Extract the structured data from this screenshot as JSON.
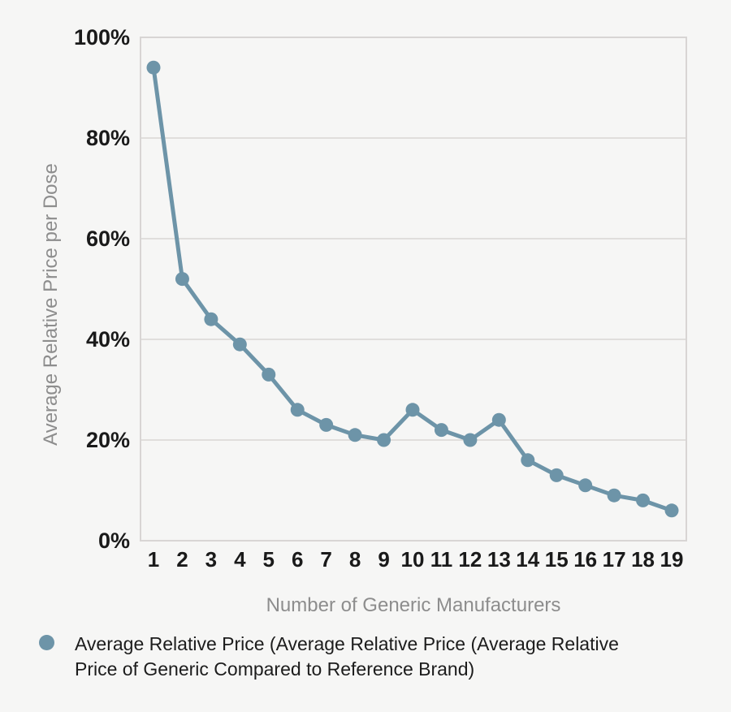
{
  "chart_data": {
    "type": "line",
    "title": "",
    "xlabel": "Number of Generic Manufacturers",
    "ylabel": "Average Relative Price per Dose",
    "x": [
      1,
      2,
      3,
      4,
      5,
      6,
      7,
      8,
      9,
      10,
      11,
      12,
      13,
      14,
      15,
      16,
      17,
      18,
      19
    ],
    "x_tick_labels": [
      "1",
      "2",
      "3",
      "4",
      "5",
      "6",
      "7",
      "8",
      "9",
      "10",
      "11",
      "12",
      "13",
      "14",
      "15",
      "16",
      "17",
      "18",
      "19"
    ],
    "series": [
      {
        "name": "Average Relative Price (Average Relative Price (Average Relative Price of Generic Compared to Reference Brand)",
        "values": [
          94,
          52,
          44,
          39,
          33,
          26,
          23,
          21,
          20,
          26,
          22,
          20,
          24,
          16,
          13,
          11,
          9,
          8,
          6
        ]
      }
    ],
    "y_tick_values": [
      0,
      20,
      40,
      60,
      80,
      100
    ],
    "y_tick_labels": [
      "0%",
      "20%",
      "40%",
      "60%",
      "80%",
      "100%"
    ],
    "ylim": [
      0,
      100
    ],
    "grid": "horizontal",
    "legend_position": "bottom-left",
    "marker": "circle"
  },
  "legend": {
    "label": "Average Relative Price (Average Relative Price (Average Relative Price of Generic Compared to Reference Brand)"
  },
  "colors": {
    "series": "#6d94a8",
    "background": "#f6f6f5",
    "grid": "#d8d5d4",
    "tick_text": "#1a1a1a",
    "axis_label_text": "#8d8d8d"
  }
}
